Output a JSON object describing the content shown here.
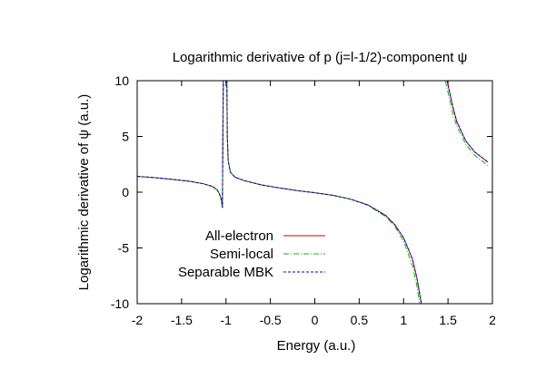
{
  "chart_data": {
    "type": "line",
    "title": "Logarithmic derivative of p (j=l-1/2)-component ψ",
    "xlabel": "Energy (a.u.)",
    "ylabel": "Logarithmic derivative of ψ (a.u.)",
    "xlim": [
      -2,
      2
    ],
    "ylim": [
      -10,
      10
    ],
    "xticks": [
      -2,
      -1.5,
      -1,
      -0.5,
      0,
      0.5,
      1,
      1.5,
      2
    ],
    "yticks": [
      -10,
      -5,
      0,
      5,
      10
    ],
    "grid": false,
    "legend_position": "bottom-left",
    "series": [
      {
        "name": "All-electron",
        "color": "#cc0000",
        "dash": "",
        "segments": [
          [
            [
              -2.0,
              1.42
            ],
            [
              -1.8,
              1.3
            ],
            [
              -1.6,
              1.15
            ],
            [
              -1.4,
              0.97
            ],
            [
              -1.25,
              0.75
            ],
            [
              -1.15,
              0.5
            ],
            [
              -1.1,
              0.2
            ],
            [
              -1.07,
              -0.2
            ],
            [
              -1.05,
              -0.8
            ],
            [
              -1.04,
              -1.4
            ],
            [
              -1.035,
              5
            ],
            [
              -1.03,
              10
            ]
          ],
          [
            [
              -0.99,
              10
            ],
            [
              -0.985,
              5
            ],
            [
              -0.975,
              2.8
            ],
            [
              -0.95,
              1.8
            ],
            [
              -0.9,
              1.35
            ],
            [
              -0.8,
              1.05
            ],
            [
              -0.6,
              0.65
            ],
            [
              -0.4,
              0.38
            ],
            [
              -0.2,
              0.15
            ],
            [
              0.0,
              -0.05
            ],
            [
              0.2,
              -0.28
            ],
            [
              0.4,
              -0.62
            ],
            [
              0.6,
              -1.15
            ],
            [
              0.8,
              -2.1
            ],
            [
              0.9,
              -2.9
            ],
            [
              1.0,
              -4.1
            ],
            [
              1.1,
              -6.0
            ],
            [
              1.15,
              -7.7
            ],
            [
              1.2,
              -10.0
            ]
          ],
          [
            [
              1.49,
              10
            ],
            [
              1.55,
              7.8
            ],
            [
              1.6,
              6.3
            ],
            [
              1.7,
              4.6
            ],
            [
              1.8,
              3.6
            ],
            [
              1.9,
              3.0
            ],
            [
              1.95,
              2.7
            ]
          ]
        ]
      },
      {
        "name": "Semi-local",
        "color": "#00bb00",
        "dash": "6,2,1,2",
        "segments": [
          [
            [
              -2.0,
              1.42
            ],
            [
              -1.8,
              1.3
            ],
            [
              -1.6,
              1.15
            ],
            [
              -1.4,
              0.97
            ],
            [
              -1.25,
              0.75
            ],
            [
              -1.15,
              0.5
            ],
            [
              -1.1,
              0.2
            ],
            [
              -1.07,
              -0.2
            ],
            [
              -1.05,
              -0.8
            ],
            [
              -1.04,
              -1.4
            ],
            [
              -1.035,
              5
            ],
            [
              -1.03,
              10
            ]
          ],
          [
            [
              -0.99,
              10
            ],
            [
              -0.985,
              5
            ],
            [
              -0.975,
              2.8
            ],
            [
              -0.95,
              1.8
            ],
            [
              -0.9,
              1.35
            ],
            [
              -0.8,
              1.05
            ],
            [
              -0.6,
              0.65
            ],
            [
              -0.4,
              0.38
            ],
            [
              -0.2,
              0.15
            ],
            [
              0.0,
              -0.05
            ],
            [
              0.2,
              -0.28
            ],
            [
              0.4,
              -0.62
            ],
            [
              0.6,
              -1.18
            ],
            [
              0.8,
              -2.2
            ],
            [
              0.9,
              -3.05
            ],
            [
              1.0,
              -4.4
            ],
            [
              1.1,
              -6.6
            ],
            [
              1.15,
              -8.4
            ],
            [
              1.18,
              -10.0
            ]
          ],
          [
            [
              1.47,
              10
            ],
            [
              1.55,
              7.2
            ],
            [
              1.6,
              5.9
            ],
            [
              1.7,
              4.3
            ],
            [
              1.8,
              3.3
            ],
            [
              1.9,
              2.7
            ],
            [
              1.95,
              2.4
            ]
          ]
        ]
      },
      {
        "name": "Separable MBK",
        "color": "#0000cc",
        "dash": "3,2",
        "segments": [
          [
            [
              -2.0,
              1.42
            ],
            [
              -1.8,
              1.3
            ],
            [
              -1.6,
              1.15
            ],
            [
              -1.4,
              0.97
            ],
            [
              -1.25,
              0.75
            ],
            [
              -1.15,
              0.5
            ],
            [
              -1.1,
              0.2
            ],
            [
              -1.07,
              -0.2
            ],
            [
              -1.05,
              -0.8
            ],
            [
              -1.04,
              -1.4
            ],
            [
              -1.035,
              5
            ],
            [
              -1.03,
              10
            ]
          ],
          [
            [
              -0.99,
              10
            ],
            [
              -0.985,
              5
            ],
            [
              -0.975,
              2.8
            ],
            [
              -0.95,
              1.8
            ],
            [
              -0.9,
              1.35
            ],
            [
              -0.8,
              1.05
            ],
            [
              -0.6,
              0.65
            ],
            [
              -0.4,
              0.38
            ],
            [
              -0.2,
              0.15
            ],
            [
              0.0,
              -0.05
            ],
            [
              0.2,
              -0.28
            ],
            [
              0.4,
              -0.62
            ],
            [
              0.6,
              -1.15
            ],
            [
              0.8,
              -2.1
            ],
            [
              0.9,
              -2.9
            ],
            [
              1.0,
              -4.1
            ],
            [
              1.1,
              -6.0
            ],
            [
              1.15,
              -7.7
            ],
            [
              1.2,
              -10.0
            ]
          ],
          [
            [
              1.49,
              10
            ],
            [
              1.55,
              7.8
            ],
            [
              1.6,
              6.3
            ],
            [
              1.7,
              4.6
            ],
            [
              1.8,
              3.6
            ],
            [
              1.9,
              3.0
            ],
            [
              1.95,
              2.7
            ]
          ]
        ]
      }
    ]
  }
}
